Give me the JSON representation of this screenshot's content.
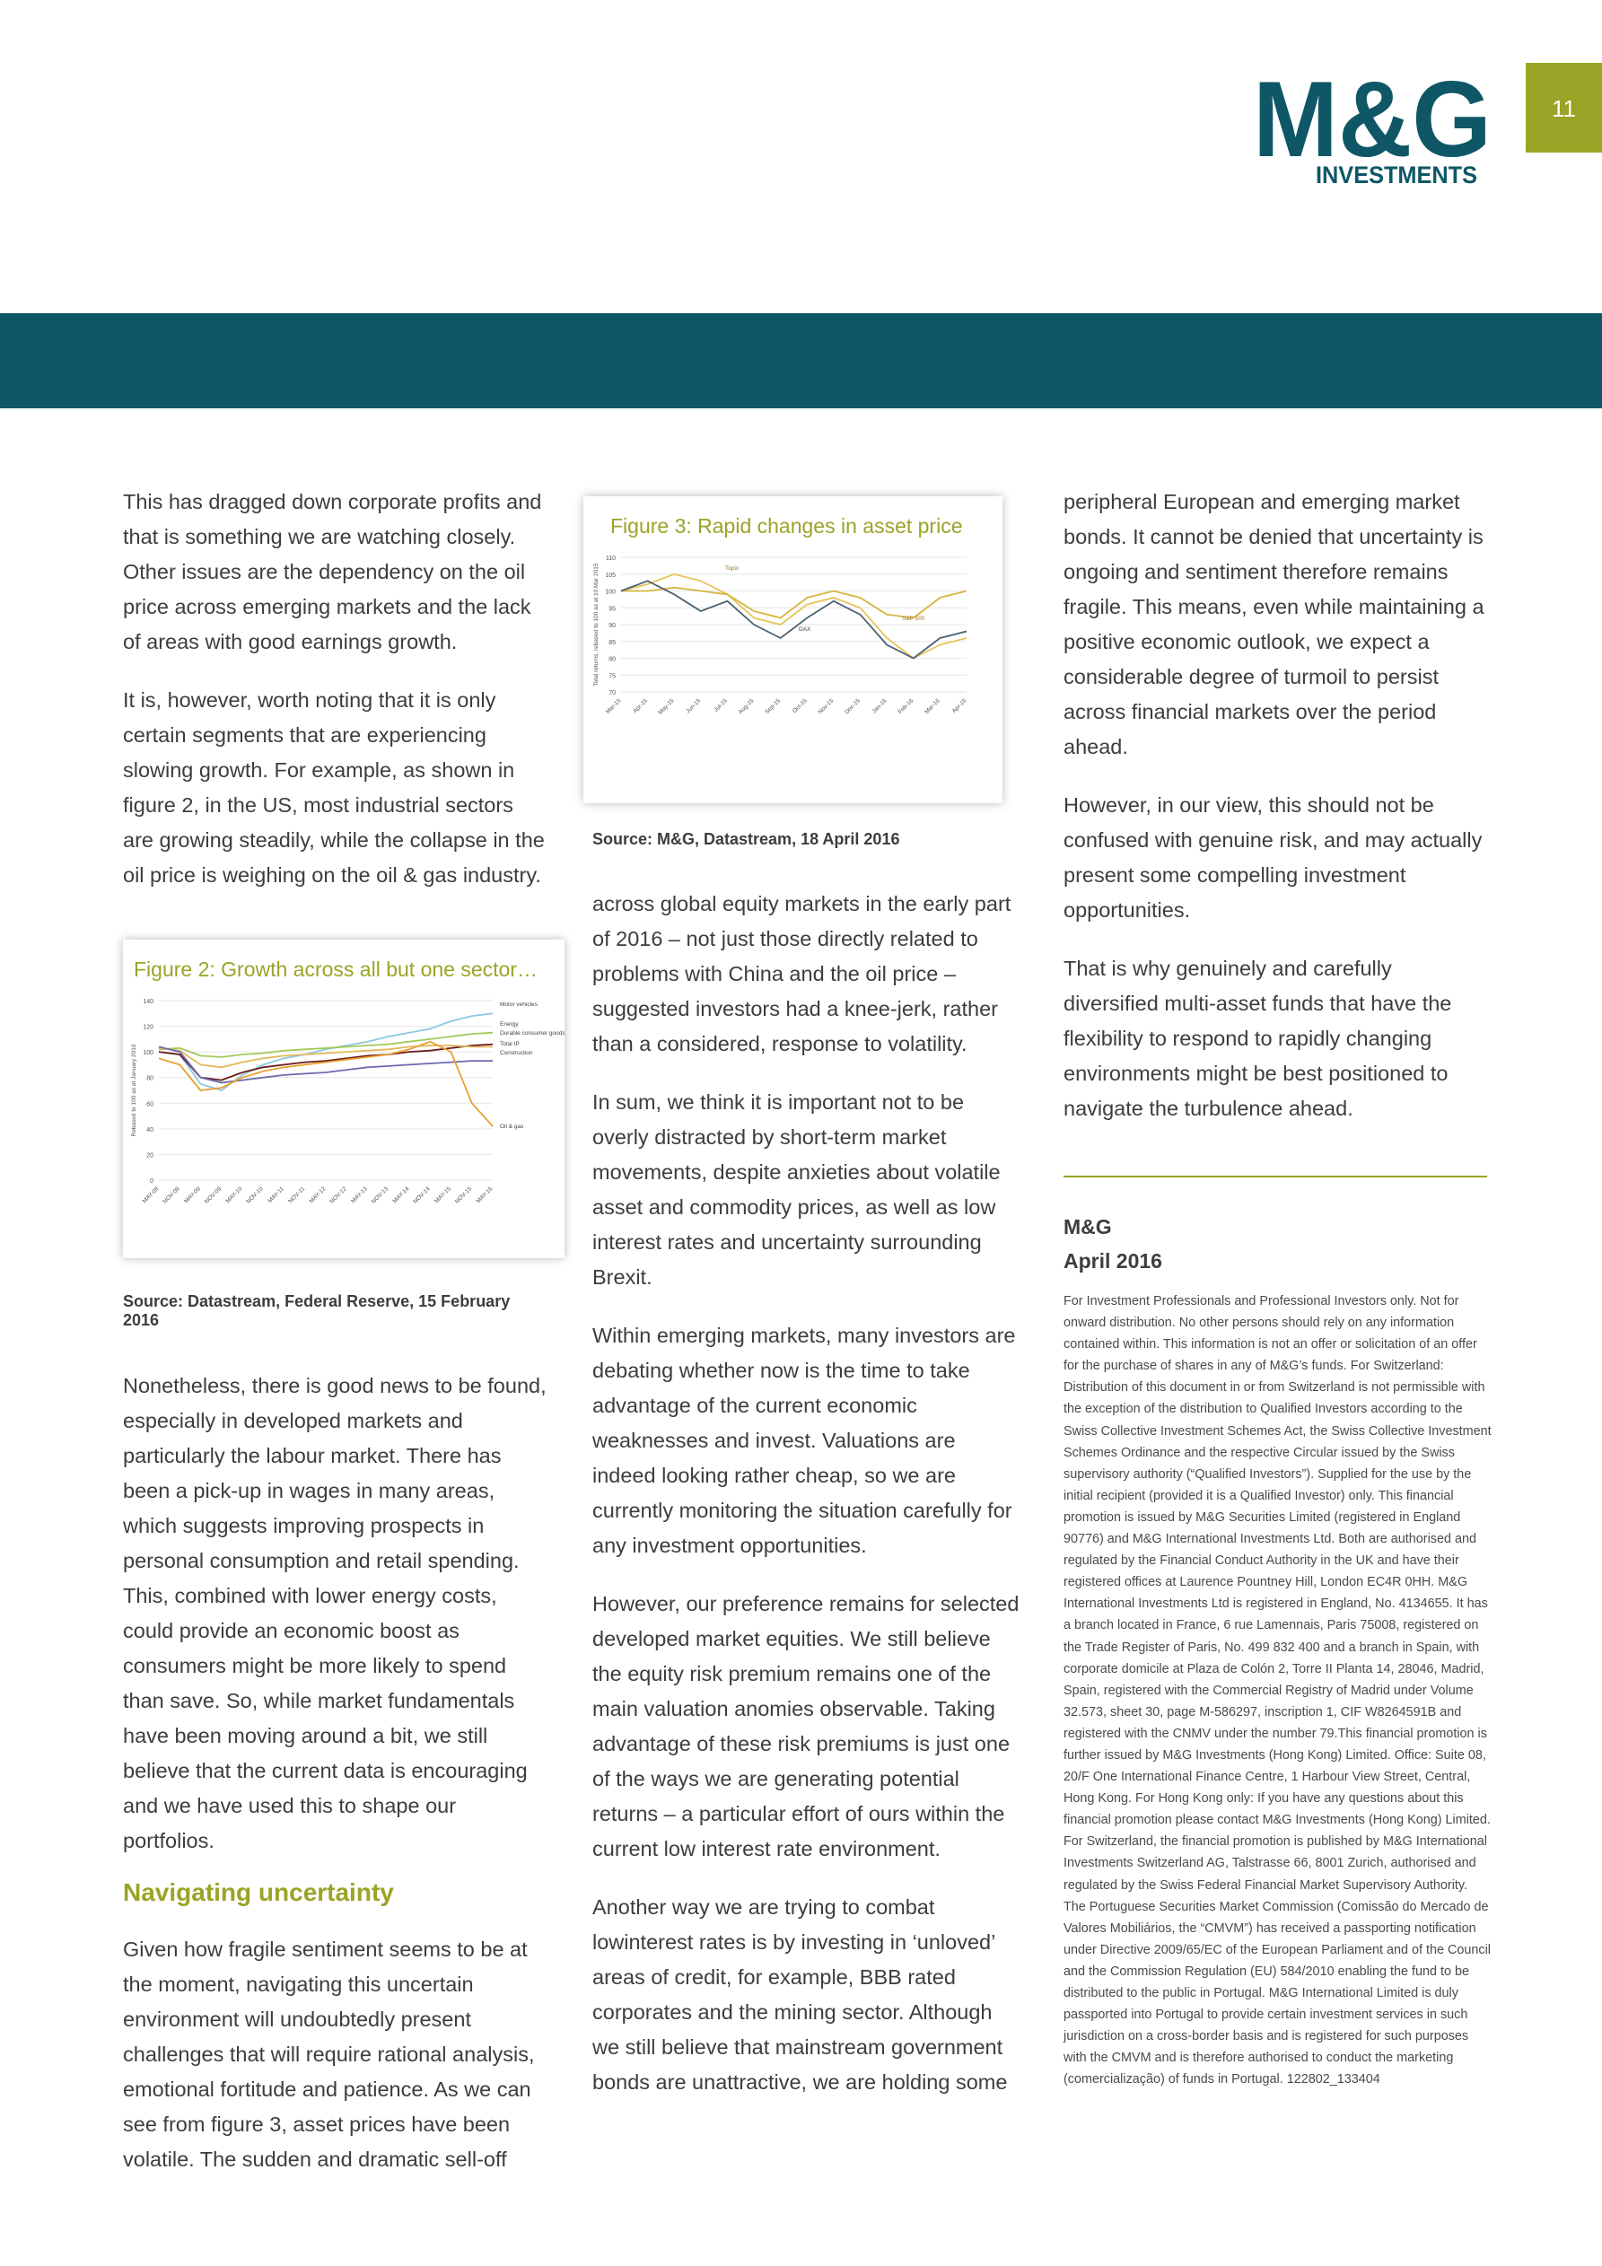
{
  "header": {
    "logo_text": "M&G",
    "logo_subtext": "INVESTMENTS",
    "page_number": "11",
    "colors": {
      "teal": "#0f5766",
      "olive": "#9aa426"
    }
  },
  "col1": {
    "p1": "This has dragged down corporate profits and that is something we are watching closely. Other issues are the dependency on the oil price across emerging markets and the lack of areas with good earnings growth.",
    "p2": "It is, however, worth noting that it is only certain segments that are experiencing slowing growth. For example, as shown in figure 2, in the US, most industrial sectors are growing steadily, while the collapse in the oil price is weighing on the oil & gas industry.",
    "figure2": {
      "title": "Figure 2:  Growth across all but one sector…",
      "source": "Source: Datastream, Federal Reserve, 15 February 2016"
    },
    "p3": "Nonetheless, there is good news to be found, especially in developed markets and particularly the labour market. There has been a pick-up in wages in many areas, which suggests improving prospects in personal consumption and retail spending. This, combined with lower energy costs, could provide an economic boost as consumers might be more likely to spend than save. So, while market fundamentals have been moving around a bit, we still believe that the current data is encouraging and we have used this to shape our portfolios.",
    "heading": "Navigating uncertainty",
    "p4": "Given how fragile sentiment seems to be at the moment, navigating this uncertain environment will undoubtedly present challenges that will require rational analysis, emotional fortitude and patience. As we can see from figure 3, asset prices have been volatile. The sudden and dramatic sell-off"
  },
  "col2": {
    "figure3": {
      "title": "Figure 3:  Rapid changes in asset price",
      "source": "Source: M&G, Datastream, 18 April 2016"
    },
    "p1": "across global equity markets in the early part of 2016 – not just those directly related to problems with China and the oil price – suggested investors had a knee-jerk, rather than a considered, response to volatility.",
    "p2": "In sum, we think it is important not to be overly distracted by short-term market movements, despite anxieties about volatile asset and commodity prices, as well as low interest rates and uncertainty surrounding Brexit.",
    "p3": "Within emerging markets, many investors are debating whether now is the time to take advantage of the current economic weaknesses and invest. Valuations are indeed looking rather cheap, so we are currently monitoring the situation carefully for any investment opportunities.",
    "p4": "However, our preference remains for selected developed market equities. We still believe the equity risk premium remains one of the main valuation anomies observable. Taking advantage of these risk premiums is just one of the ways we are generating potential returns – a particular effort of ours within the current low interest rate environment.",
    "p5": "Another way we are trying to combat lowinterest rates is by investing in ‘unloved’ areas of credit, for example, BBB rated corporates and the mining sector. Although we still believe that mainstream government bonds are unattractive, we are holding some"
  },
  "col3": {
    "p1": "peripheral European and emerging market bonds.  It cannot be denied that uncertainty is ongoing and sentiment therefore remains fragile. This means, even while maintaining a positive economic outlook, we expect a considerable degree of turmoil to persist across financial markets over the period ahead.",
    "p2": "However, in our view, this should not be confused with genuine risk, and may actually present some compelling investment opportunities.",
    "p3": "That is why genuinely and carefully diversified multi-asset funds that have the flexibility to respond to rapidly changing environments might be best positioned to navigate the turbulence ahead.",
    "sign_name": "M&G",
    "sign_date": "April 2016",
    "disclaimer": "For Investment Professionals and Professional Investors only.  Not for onward distribution.  No other persons should rely on any information contained within. This information is not an offer or solicitation of an offer for the purchase of shares in any of M&G’s funds. For Switzerland: Distribution of this document in or from Switzerland is not permissible with the exception of the distribution to Qualified Investors according to the Swiss Collective Investment Schemes Act, the Swiss Collective Investment Schemes Ordinance and the respective Circular issued by the Swiss supervisory authority (“Qualified Investors”). Supplied for the use by the initial recipient (provided it is a Qualified Investor) only. This financial promotion is issued by M&G Securities Limited (registered in England 90776) and M&G International Investments Ltd. Both are authorised and regulated by the Financial Conduct Authority in the UK and have their registered offices at Laurence Pountney Hill, London EC4R 0HH. M&G International Investments Ltd is registered in England, No. 4134655.  It has a branch located in France, 6 rue Lamennais, Paris 75008, registered on the Trade Register of Paris, No. 499 832 400 and a branch in Spain, with corporate domicile at Plaza de Colón 2, Torre II  Planta 14, 28046, Madrid, Spain, registered with the Commercial Registry of Madrid under Volume 32.573, sheet 30, page M-586297, inscription 1, CIF W8264591B  and registered with the CNMV under the number 79.This financial promotion is further issued by M&G Investments (Hong Kong) Limited. Office: Suite 08, 20/F One International Finance Centre, 1 Harbour View Street, Central, Hong Kong. For Hong Kong only: If you have any questions about this financial promotion please contact M&G Investments (Hong Kong) Limited. For Switzerland, the financial promotion is published by M&G International Investments Switzerland AG, Talstrasse 66, 8001 Zurich, authorised and regulated by the Swiss Federal Financial Market Supervisory Authority. The Portuguese Securities Market Commission (Comissão do Mercado de Valores Mobiliários, the “CMVM”) has received a passporting notification under Directive 2009/65/EC of the European Parliament and of the Council and the Commission Regulation (EU) 584/2010 enabling the fund to be distributed to the public in Portugal. M&G International Limited is duly passported into Portugal to provide certain investment services in such jurisdiction on a cross-border basis and is registered for such purposes with the CMVM and is therefore authorised to conduct the marketing (comercialização) of funds in Portugal. 122802_133404"
  },
  "chart_data": [
    {
      "type": "line",
      "ylabel": "Rebased to 100 as at January 2010",
      "ylim": [
        0,
        140
      ],
      "y_ticks": [
        0,
        20,
        40,
        60,
        80,
        100,
        120,
        140
      ],
      "x_ticks": [
        "MAY-08",
        "NOV-08",
        "MAY-09",
        "NOV-09",
        "MAY-10",
        "NOV-10",
        "MAY-11",
        "NOV-11",
        "MAY-12",
        "NOV-12",
        "MAY-13",
        "NOV-13",
        "MAY-14",
        "NOV-14",
        "MAY-15",
        "NOV-15",
        "MAY-16"
      ],
      "series": [
        {
          "name": "Motor vehicles",
          "color": "#8cc8e0",
          "values": [
            100,
            98,
            75,
            70,
            82,
            90,
            95,
            98,
            102,
            105,
            108,
            112,
            115,
            118,
            124,
            128,
            130
          ]
        },
        {
          "name": "Energy",
          "color": "#a3c95a",
          "values": [
            102,
            103,
            97,
            96,
            98,
            99,
            101,
            102,
            103,
            104,
            105,
            106,
            108,
            110,
            112,
            114,
            115
          ]
        },
        {
          "name": "Durable consumer goods",
          "color": "#6b1a1a",
          "values": [
            100,
            98,
            80,
            78,
            84,
            88,
            90,
            92,
            93,
            95,
            97,
            98,
            100,
            101,
            103,
            105,
            106
          ]
        },
        {
          "name": "Total IP",
          "color": "#e3b85a",
          "values": [
            103,
            101,
            90,
            88,
            92,
            95,
            97,
            98,
            99,
            100,
            101,
            102,
            104,
            105,
            105,
            104,
            104
          ]
        },
        {
          "name": "Construction",
          "color": "#6b6bb0",
          "values": [
            104,
            100,
            80,
            76,
            78,
            80,
            82,
            83,
            84,
            86,
            88,
            89,
            90,
            91,
            92,
            93,
            93
          ]
        },
        {
          "name": "Oil & gas",
          "color": "#e8a030",
          "values": [
            95,
            90,
            70,
            72,
            80,
            85,
            88,
            90,
            92,
            94,
            96,
            98,
            102,
            108,
            100,
            60,
            42
          ]
        }
      ]
    },
    {
      "type": "line",
      "ylabel": "Total returns, rebased to 100 as at 10 Mar 2015",
      "ylim": [
        70,
        110
      ],
      "y_ticks": [
        70,
        75,
        80,
        85,
        90,
        95,
        100,
        105,
        110
      ],
      "x_ticks": [
        "Mar-15",
        "Apr-15",
        "May-15",
        "Jun-15",
        "Jul-15",
        "Aug-15",
        "Sep-15",
        "Oct-15",
        "Nov-15",
        "Dec-15",
        "Jan-16",
        "Feb-16",
        "Mar-16",
        "Apr-16"
      ],
      "series": [
        {
          "name": "Topix",
          "color": "#e8c45a",
          "values": [
            100,
            102,
            105,
            103,
            99,
            92,
            90,
            96,
            98,
            95,
            86,
            80,
            84,
            86
          ]
        },
        {
          "name": "S&P 500",
          "color": "#d9b440",
          "values": [
            100,
            100,
            101,
            100,
            99,
            94,
            92,
            98,
            100,
            98,
            93,
            92,
            98,
            100
          ]
        },
        {
          "name": "DAX",
          "color": "#4a6272",
          "values": [
            100,
            103,
            99,
            94,
            97,
            90,
            86,
            92,
            97,
            93,
            84,
            80,
            86,
            88
          ]
        }
      ]
    }
  ]
}
